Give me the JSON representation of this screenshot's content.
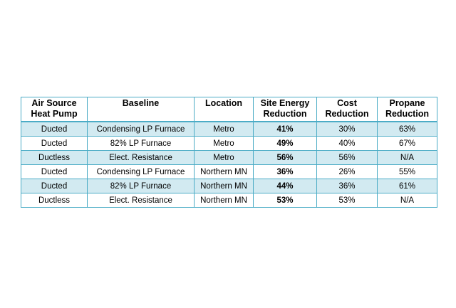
{
  "table": {
    "headers": {
      "heat_pump_line1": "Air Source",
      "heat_pump_line2": "Heat Pump",
      "baseline": "Baseline",
      "location": "Location",
      "site_energy_line1": "Site Energy",
      "site_energy_line2": "Reduction",
      "cost_line1": "Cost",
      "cost_line2": "Reduction",
      "propane_line1": "Propane",
      "propane_line2": "Reduction"
    },
    "rows": [
      {
        "heat_pump": "Ducted",
        "baseline": "Condensing LP Furnace",
        "location": "Metro",
        "site_energy": "41%",
        "cost": "30%",
        "propane": "63%"
      },
      {
        "heat_pump": "Ducted",
        "baseline": "82% LP Furnace",
        "location": "Metro",
        "site_energy": "49%",
        "cost": "40%",
        "propane": "67%"
      },
      {
        "heat_pump": "Ductless",
        "baseline": "Elect. Resistance",
        "location": "Metro",
        "site_energy": "56%",
        "cost": "56%",
        "propane": "N/A"
      },
      {
        "heat_pump": "Ducted",
        "baseline": "Condensing LP Furnace",
        "location": "Northern MN",
        "site_energy": "36%",
        "cost": "26%",
        "propane": "55%"
      },
      {
        "heat_pump": "Ducted",
        "baseline": "82% LP Furnace",
        "location": "Northern MN",
        "site_energy": "44%",
        "cost": "36%",
        "propane": "61%"
      },
      {
        "heat_pump": "Ductless",
        "baseline": "Elect. Resistance",
        "location": "Northern MN",
        "site_energy": "53%",
        "cost": "53%",
        "propane": "N/A"
      }
    ]
  },
  "colors": {
    "border": "#4bacc6",
    "band": "#d2eaf1"
  }
}
